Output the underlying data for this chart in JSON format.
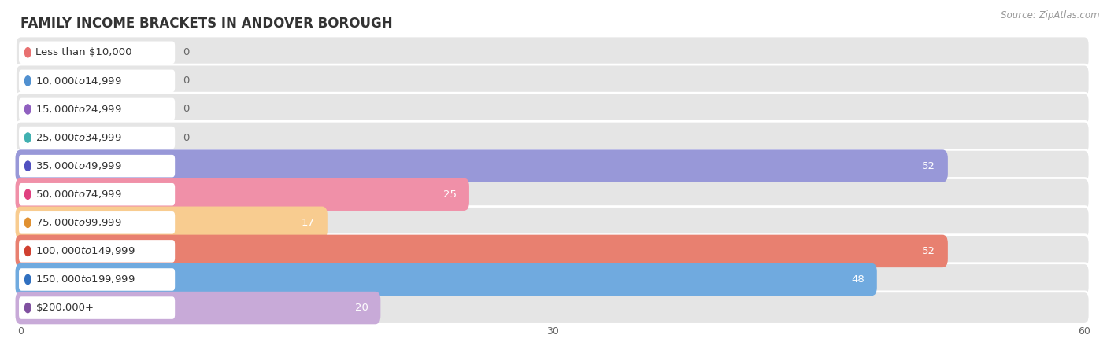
{
  "title": "FAMILY INCOME BRACKETS IN ANDOVER BOROUGH",
  "source": "Source: ZipAtlas.com",
  "categories": [
    "Less than $10,000",
    "$10,000 to $14,999",
    "$15,000 to $24,999",
    "$25,000 to $34,999",
    "$35,000 to $49,999",
    "$50,000 to $74,999",
    "$75,000 to $99,999",
    "$100,000 to $149,999",
    "$150,000 to $199,999",
    "$200,000+"
  ],
  "values": [
    0,
    0,
    0,
    0,
    52,
    25,
    17,
    52,
    48,
    20
  ],
  "bar_colors": [
    "#f5adab",
    "#aac8f0",
    "#c8aae8",
    "#80ced0",
    "#9898d8",
    "#f090a8",
    "#f8cc90",
    "#e88070",
    "#70aadf",
    "#c8aad8"
  ],
  "dot_colors": [
    "#e87070",
    "#5090d0",
    "#9060c0",
    "#40b0b0",
    "#5050c0",
    "#e04080",
    "#e09030",
    "#d04030",
    "#3070c0",
    "#8050a0"
  ],
  "label_color_inside": "#ffffff",
  "label_color_outside": "#666666",
  "xlim": [
    0,
    60
  ],
  "xticks": [
    0,
    30,
    60
  ],
  "background_color": "#f7f7f7",
  "row_background_color": "#efefef",
  "bar_bg_color": "#e5e5e5",
  "white_color": "#ffffff",
  "title_fontsize": 12,
  "label_fontsize": 9.5,
  "value_fontsize": 9.5,
  "source_fontsize": 8.5,
  "tick_fontsize": 9
}
